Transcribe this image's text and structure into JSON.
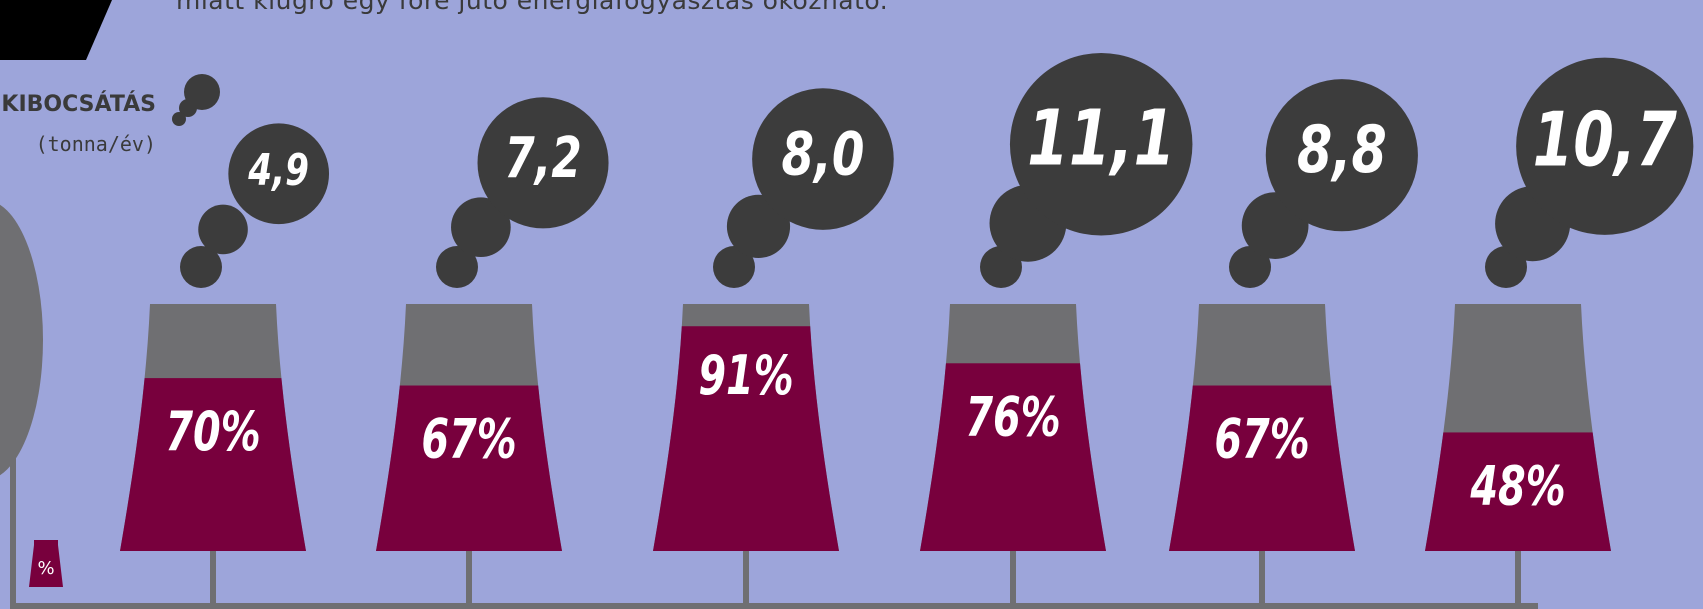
{
  "header": {
    "cut_text": "miatt kiugró egy főre jutó energiafogyasztás okozható."
  },
  "legend": {
    "title": "KIBOCSÁTÁS",
    "unit": "(tonna/év)",
    "pct_symbol": "%"
  },
  "colors": {
    "background": "#9da5da",
    "smoke": "#3c3c3c",
    "tower_top": "#6f6f72",
    "tower_fill": "#78003d",
    "pipe": "#6f6f72",
    "text_light": "#ffffff"
  },
  "chart_data": {
    "type": "bar",
    "categories": [
      "",
      "",
      "",
      "",
      "",
      ""
    ],
    "series": [
      {
        "name": "KIBOCSÁTÁS (tonna/év)",
        "values": [
          4.9,
          7.2,
          8.0,
          11.1,
          8.8,
          10.7
        ],
        "labels": [
          "4,9",
          "7,2",
          "8,0",
          "11,1",
          "8,8",
          "10,7"
        ]
      },
      {
        "name": "%",
        "values": [
          70,
          67,
          91,
          76,
          67,
          48
        ],
        "labels": [
          "70%",
          "67%",
          "91%",
          "76%",
          "67%",
          "48%"
        ]
      }
    ],
    "title": "",
    "xlabel": "",
    "ylabel": ""
  }
}
